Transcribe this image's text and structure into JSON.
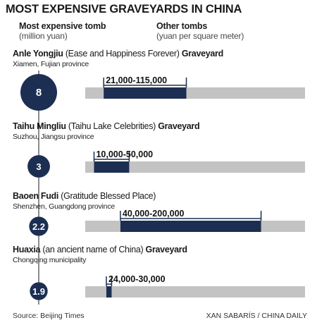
{
  "title": "MOST EXPENSIVE GRAVEYARDS IN CHINA",
  "headers": {
    "tomb": "Most expensive tomb",
    "tomb_unit": "(million yuan)",
    "other": "Other tombs",
    "other_unit": "(yuan per square meter)"
  },
  "source": "Source: Beijing Times",
  "credit": "XAN SABARÍS / CHINA DAILY",
  "colors": {
    "bar_bg": "#c3c3c3",
    "bar_fg": "#1c2e52",
    "circle": "#1c2e52"
  },
  "chart_data": {
    "type": "bar",
    "title": "MOST EXPENSIVE GRAVEYARDS IN CHINA",
    "x_range": [
      0,
      250000
    ],
    "categories": [
      "Anle Yongjiu (Ease and Happiness Forever) Graveyard",
      "Taihu Mingliu (Taihu Lake Celebrities) Graveyard",
      "Baoen Fudi (Gratitude Blessed Place)",
      "Huaxia (an ancient name of China) Graveyard"
    ],
    "series": [
      {
        "name": "Most expensive tomb",
        "unit": "million yuan",
        "values": [
          8,
          3,
          2.2,
          1.9
        ]
      },
      {
        "name": "Other tombs",
        "unit": "yuan per square meter",
        "ranges": [
          [
            21000,
            115000
          ],
          [
            10000,
            50000
          ],
          [
            40000,
            200000
          ],
          [
            24000,
            30000
          ]
        ]
      }
    ],
    "entries": [
      {
        "name_bold": "Anle Yongjiu",
        "name_rest": " (Ease and Happiness Forever) ",
        "name_tail": "Graveyard",
        "location": "Xiamen, Fujian province",
        "tomb_value": 8,
        "tomb_label": "8",
        "range": [
          21000,
          115000
        ],
        "range_label": "21,000-115,000"
      },
      {
        "name_bold": "Taihu Mingliu",
        "name_rest": " (Taihu Lake Celebrities) ",
        "name_tail": "Graveyard",
        "location": "Suzhou, Jiangsu province",
        "tomb_value": 3,
        "tomb_label": "3",
        "range": [
          10000,
          50000
        ],
        "range_label": "10,000-50,000"
      },
      {
        "name_bold": "Baoen Fudi",
        "name_rest": " (Gratitude Blessed Place)",
        "name_tail": "",
        "location": "Shenzhen, Guangdong province",
        "tomb_value": 2.2,
        "tomb_label": "2.2",
        "range": [
          40000,
          200000
        ],
        "range_label": "40,000-200,000"
      },
      {
        "name_bold": "Huaxia",
        "name_rest": " (an ancient name of China) ",
        "name_tail": "Graveyard",
        "location": "Chongqing municipality",
        "tomb_value": 1.9,
        "tomb_label": "1.9",
        "range": [
          24000,
          30000
        ],
        "range_label": "24,000-30,000"
      }
    ]
  }
}
